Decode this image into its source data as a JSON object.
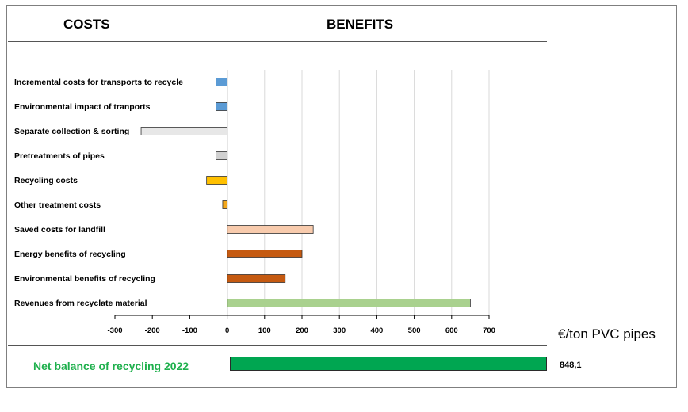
{
  "headers": {
    "costs": "COSTS",
    "benefits": "BENEFITS"
  },
  "chart_data": {
    "type": "bar",
    "orientation": "horizontal",
    "categories": [
      "Incremental costs for transports to recycle",
      "Environmental impact of tranports",
      "Separate collection & sorting",
      "Pretreatments of pipes",
      "Recycling costs",
      "Other treatment costs",
      "Saved costs for landfill",
      "Energy benefits of recycling",
      "Environmental benefits of recycling",
      "Revenues from recyclate material"
    ],
    "values": [
      -30,
      -30,
      -230,
      -30,
      -55,
      -12,
      230,
      200,
      155,
      650
    ],
    "colors": [
      "#5b9bd5",
      "#5b9bd5",
      "#e7e7e7",
      "#d0d0d0",
      "#ffc000",
      "#f4a81c",
      "#f8cbad",
      "#c55a11",
      "#c55a11",
      "#a9d18e"
    ],
    "xlim": [
      -300,
      700
    ],
    "xticks": [
      "-300",
      "-200",
      "-100",
      "0",
      "100",
      "200",
      "300",
      "400",
      "500",
      "600",
      "700"
    ],
    "grid": true,
    "unit_label": "€/ton PVC pipes"
  },
  "net": {
    "label": "Net balance of recycling 2022",
    "value": 848.1,
    "value_label": "848,1",
    "color": "#00a651"
  }
}
